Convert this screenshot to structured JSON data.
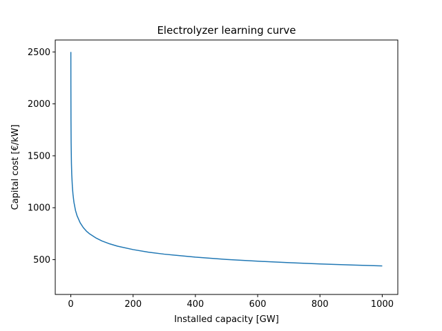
{
  "chart_data": {
    "type": "line",
    "title": "Electrolyzer learning curve",
    "xlabel": "Installed capacity [GW]",
    "ylabel": "Capital cost [€/kW]",
    "xlim": [
      -50,
      1050
    ],
    "ylim": [
      165,
      2615
    ],
    "xticks": [
      0,
      200,
      400,
      600,
      800,
      1000
    ],
    "yticks": [
      500,
      1000,
      1500,
      2000,
      2500
    ],
    "grid": false,
    "series": [
      {
        "color": "#1f77b4",
        "x": [
          0.1,
          0.2,
          0.5,
          1,
          2,
          3,
          5,
          7,
          10,
          15,
          20,
          30,
          40,
          50,
          60,
          80,
          100,
          125,
          150,
          200,
          250,
          300,
          400,
          500,
          600,
          700,
          800,
          900,
          1000
        ],
        "y": [
          2500,
          2191,
          1854,
          1626,
          1425,
          1319,
          1201,
          1128,
          1053,
          974,
          923,
          855,
          809,
          775,
          749,
          710,
          680,
          652,
          630,
          597,
          572,
          553,
          524,
          502,
          485,
          471,
          459,
          449,
          440
        ]
      }
    ]
  }
}
